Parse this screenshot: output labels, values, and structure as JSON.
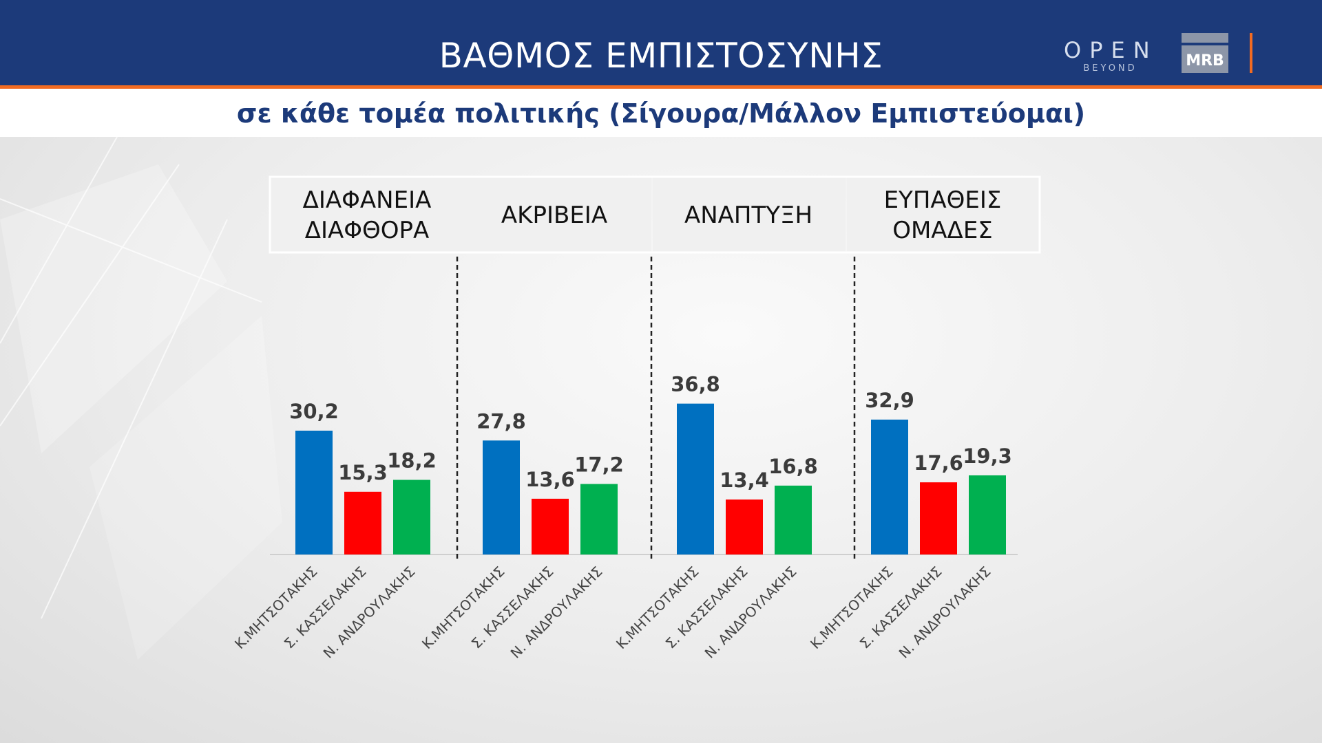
{
  "header": {
    "title": "ΒΑΘΜΟΣ ΕΜΠΙΣΤΟΣΥΝΗΣ",
    "subtitle": "σε κάθε τομέα πολιτικής (Σίγουρα/Μάλλον Εμπιστεύομαι)",
    "logo_open": "OPEN",
    "logo_beyond": "BEYOND",
    "logo_mrb": "MRB"
  },
  "colors": {
    "header_bg": "#1c3a7a",
    "accent": "#f26b21",
    "series": [
      "#0070c0",
      "#ff0000",
      "#00b050"
    ]
  },
  "chart_data": {
    "type": "bar",
    "groups": [
      {
        "label_lines": [
          "ΔΙΑΦΑΝΕΙΑ",
          "ΔΙΑΦΘΟΡΑ"
        ],
        "values": [
          30.2,
          15.3,
          18.2
        ],
        "value_labels": [
          "30,2",
          "15,3",
          "18,2"
        ]
      },
      {
        "label_lines": [
          "ΑΚΡΙΒΕΙΑ"
        ],
        "values": [
          27.8,
          13.6,
          17.2
        ],
        "value_labels": [
          "27,8",
          "13,6",
          "17,2"
        ]
      },
      {
        "label_lines": [
          "ΑΝΑΠΤΥΞΗ"
        ],
        "values": [
          36.8,
          13.4,
          16.8
        ],
        "value_labels": [
          "36,8",
          "13,4",
          "16,8"
        ]
      },
      {
        "label_lines": [
          "ΕΥΠΑΘΕΙΣ",
          "ΟΜΑΔΕΣ"
        ],
        "values": [
          32.9,
          17.6,
          19.3
        ],
        "value_labels": [
          "32,9",
          "17,6",
          "19,3"
        ]
      }
    ],
    "categories": [
      "Κ.ΜΗΤΣΟΤΑΚΗΣ",
      "Σ. ΚΑΣΣΕΛΑΚΗΣ",
      "Ν. ΑΝΔΡΟΥΛΑΚΗΣ"
    ],
    "ylim": [
      0,
      40
    ],
    "grid": false,
    "legend": "none"
  }
}
